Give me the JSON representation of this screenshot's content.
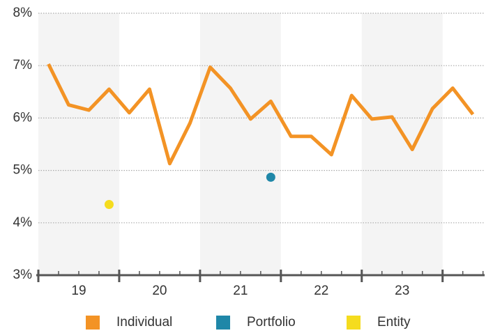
{
  "chart_data": {
    "type": "line",
    "x": [
      19.125,
      19.375,
      19.625,
      19.875,
      20.125,
      20.375,
      20.625,
      20.875,
      21.125,
      21.375,
      21.625,
      21.875,
      22.125,
      22.375,
      22.625,
      22.875,
      23.125,
      23.375,
      23.625,
      23.875,
      24.125,
      24.375
    ],
    "series": [
      {
        "name": "Individual",
        "color": "#f39325",
        "values": [
          7.03,
          6.25,
          6.15,
          6.55,
          6.1,
          6.55,
          5.13,
          5.9,
          6.97,
          6.57,
          5.98,
          6.32,
          5.65,
          5.65,
          5.3,
          6.43,
          5.98,
          6.02,
          5.4,
          6.18,
          6.57,
          6.07
        ]
      },
      {
        "name": "Portfolio",
        "color": "#1f87a8",
        "x": [
          21.875
        ],
        "values": [
          4.87
        ]
      },
      {
        "name": "Entity",
        "color": "#f5dc1e",
        "x": [
          19.875
        ],
        "values": [
          4.35
        ]
      }
    ],
    "xlim": [
      19,
      24.52
    ],
    "xticks": [
      {
        "value": 19.5,
        "label": "19"
      },
      {
        "value": 20.5,
        "label": "20"
      },
      {
        "value": 21.5,
        "label": "21"
      },
      {
        "value": 22.5,
        "label": "22"
      },
      {
        "value": 23.5,
        "label": "23"
      }
    ],
    "ylim": [
      3,
      8
    ],
    "yticks": [
      {
        "value": 3,
        "label": "3%"
      },
      {
        "value": 4,
        "label": "4%"
      },
      {
        "value": 5,
        "label": "5%"
      },
      {
        "value": 6,
        "label": "6%"
      },
      {
        "value": 7,
        "label": "7%"
      },
      {
        "value": 8,
        "label": "8%"
      }
    ],
    "grid": true,
    "legend": "bottom"
  }
}
